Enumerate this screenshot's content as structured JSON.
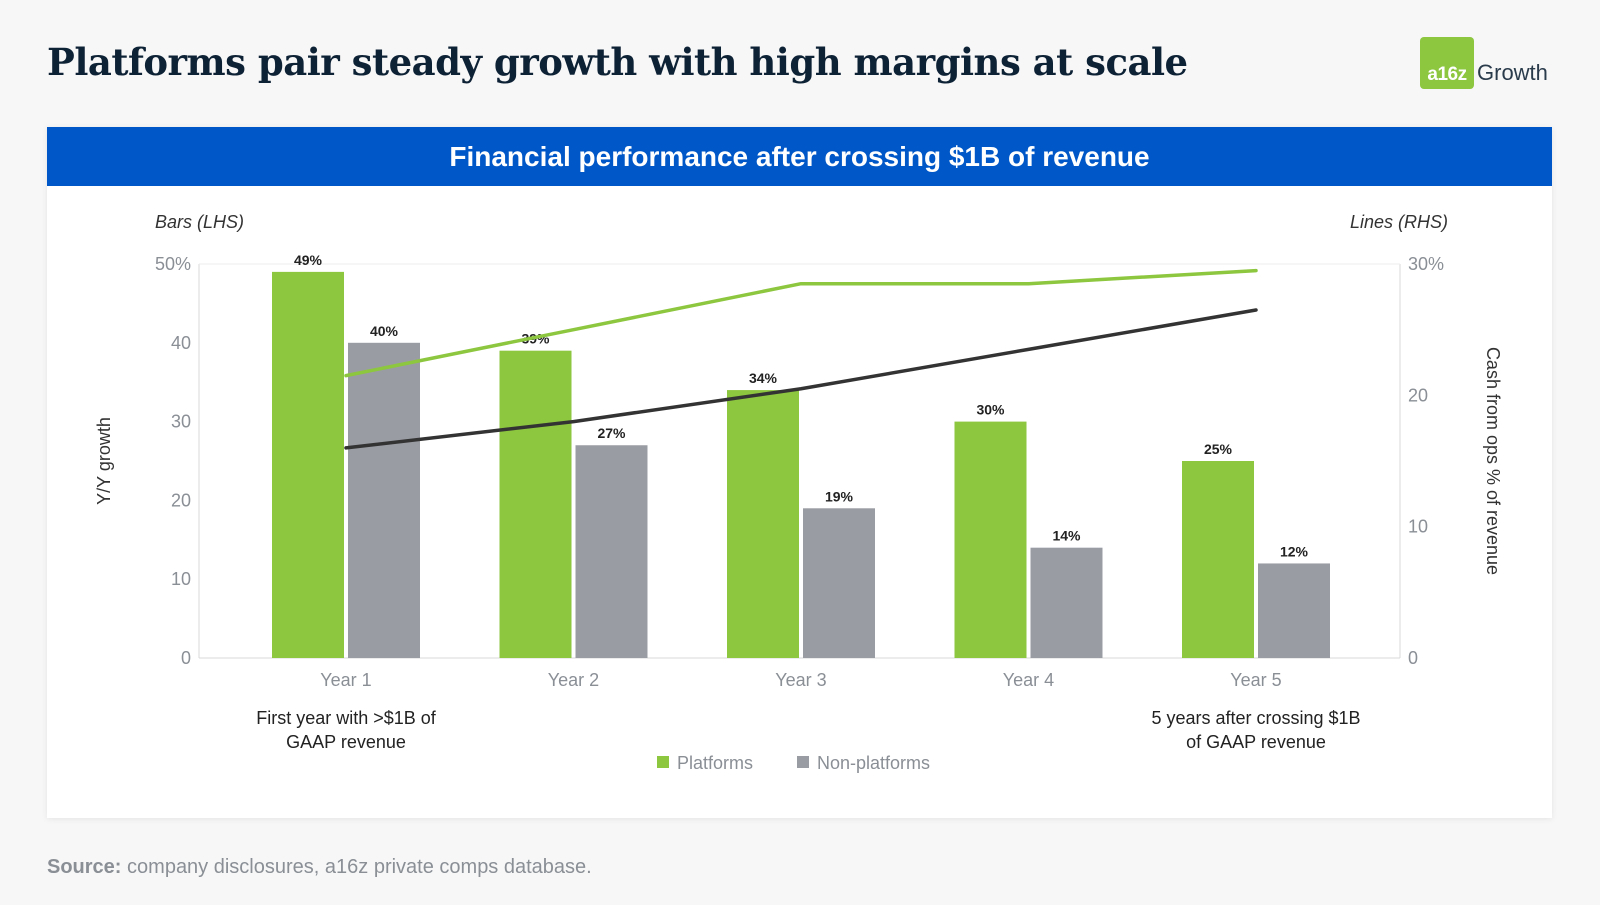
{
  "header": {
    "title": "Platforms pair steady growth with high margins at scale",
    "logo_mark": "a16z",
    "logo_word": "Growth"
  },
  "banner": {
    "title": "Financial performance after crossing $1B of revenue"
  },
  "footer": {
    "source_label": "Source:",
    "source_text": "company disclosures, a16z private comps database."
  },
  "colors": {
    "platforms": "#8dc63f",
    "non_platforms": "#9a9ca4",
    "banner": "#0057c7",
    "line_dark": "#333333"
  },
  "chart_data": {
    "type": "bar",
    "categories": [
      "Year 1",
      "Year 2",
      "Year 3",
      "Year 4",
      "Year 5"
    ],
    "series": [
      {
        "name": "Platforms",
        "values": [
          49,
          39,
          34,
          30,
          25
        ],
        "labels": [
          "49%",
          "39%",
          "34%",
          "30%",
          "25%"
        ]
      },
      {
        "name": "Non-platforms",
        "values": [
          40,
          27,
          19,
          14,
          12
        ],
        "labels": [
          "40%",
          "27%",
          "19%",
          "14%",
          "12%"
        ]
      }
    ],
    "lines": [
      {
        "values": [
          21.5,
          25,
          28.5,
          28.5,
          29.5
        ]
      },
      {
        "values": [
          16,
          18,
          20.5,
          23.5,
          26.5
        ]
      }
    ],
    "left_axis": {
      "title": "Bars (LHS)",
      "label": "Y/Y growth",
      "ylim": [
        0,
        50
      ],
      "ticks": [
        "0",
        "10",
        "20",
        "30",
        "40",
        "50%"
      ]
    },
    "right_axis": {
      "title": "Lines (RHS)",
      "label": "Cash from ops % of revenue",
      "ylim": [
        0,
        30
      ],
      "ticks": [
        "0",
        "10",
        "20",
        "30%"
      ]
    },
    "annotations": [
      {
        "category": "Year 1",
        "lines": [
          "First year with >$1B of",
          "GAAP revenue"
        ]
      },
      {
        "category": "Year 5",
        "lines": [
          "5 years after crossing $1B",
          "of GAAP revenue"
        ]
      }
    ],
    "legend": [
      "Platforms",
      "Non-platforms"
    ],
    "legend_position": "bottom",
    "grid": false
  }
}
